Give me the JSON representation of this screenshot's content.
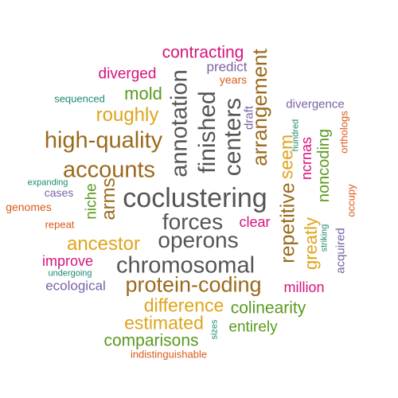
{
  "colors": {
    "gray": "#555555",
    "brown": "#9a6a1c",
    "gold": "#e0a41c",
    "magenta": "#d6147c",
    "green": "#5a9a1e",
    "purple": "#7a62a6",
    "orange": "#d85a18",
    "teal": "#1a8a72"
  },
  "words": [
    {
      "text": "coclustering",
      "color": "gray"
    },
    {
      "text": "forces",
      "color": "gray"
    },
    {
      "text": "operons",
      "color": "gray"
    },
    {
      "text": "chromosomal",
      "color": "gray"
    },
    {
      "text": "annotation",
      "color": "gray"
    },
    {
      "text": "finished",
      "color": "gray"
    },
    {
      "text": "centers",
      "color": "gray"
    },
    {
      "text": "high-quality",
      "color": "brown"
    },
    {
      "text": "accounts",
      "color": "brown"
    },
    {
      "text": "protein-coding",
      "color": "brown"
    },
    {
      "text": "roughly",
      "color": "gold"
    },
    {
      "text": "ancestor",
      "color": "gold"
    },
    {
      "text": "difference",
      "color": "gold"
    },
    {
      "text": "estimated",
      "color": "gold"
    },
    {
      "text": "arrangement",
      "color": "brown"
    },
    {
      "text": "repetitive",
      "color": "brown"
    },
    {
      "text": "seem",
      "color": "gold"
    },
    {
      "text": "greatly",
      "color": "gold"
    },
    {
      "text": "contracting",
      "color": "magenta"
    },
    {
      "text": "diverged",
      "color": "magenta"
    },
    {
      "text": "clear",
      "color": "magenta"
    },
    {
      "text": "improve",
      "color": "magenta"
    },
    {
      "text": "million",
      "color": "magenta"
    },
    {
      "text": "ncrnas",
      "color": "magenta"
    },
    {
      "text": "mold",
      "color": "green"
    },
    {
      "text": "niche",
      "color": "green"
    },
    {
      "text": "arms",
      "color": "brown"
    },
    {
      "text": "noncoding",
      "color": "green"
    },
    {
      "text": "colinearity",
      "color": "green"
    },
    {
      "text": "entirely",
      "color": "green"
    },
    {
      "text": "comparisons",
      "color": "green"
    },
    {
      "text": "predict",
      "color": "purple"
    },
    {
      "text": "divergence",
      "color": "purple"
    },
    {
      "text": "cases",
      "color": "purple"
    },
    {
      "text": "ecological",
      "color": "purple"
    },
    {
      "text": "acquired",
      "color": "purple"
    },
    {
      "text": "draft",
      "color": "purple"
    },
    {
      "text": "years",
      "color": "orange"
    },
    {
      "text": "genomes",
      "color": "orange"
    },
    {
      "text": "repeat",
      "color": "orange"
    },
    {
      "text": "orthologs",
      "color": "orange"
    },
    {
      "text": "occupy",
      "color": "orange"
    },
    {
      "text": "indistinguishable",
      "color": "orange"
    },
    {
      "text": "sequenced",
      "color": "teal"
    },
    {
      "text": "expanding",
      "color": "teal"
    },
    {
      "text": "undergoing",
      "color": "teal"
    },
    {
      "text": "hundred",
      "color": "teal"
    },
    {
      "text": "striking",
      "color": "teal"
    },
    {
      "text": "sizes",
      "color": "teal"
    }
  ]
}
